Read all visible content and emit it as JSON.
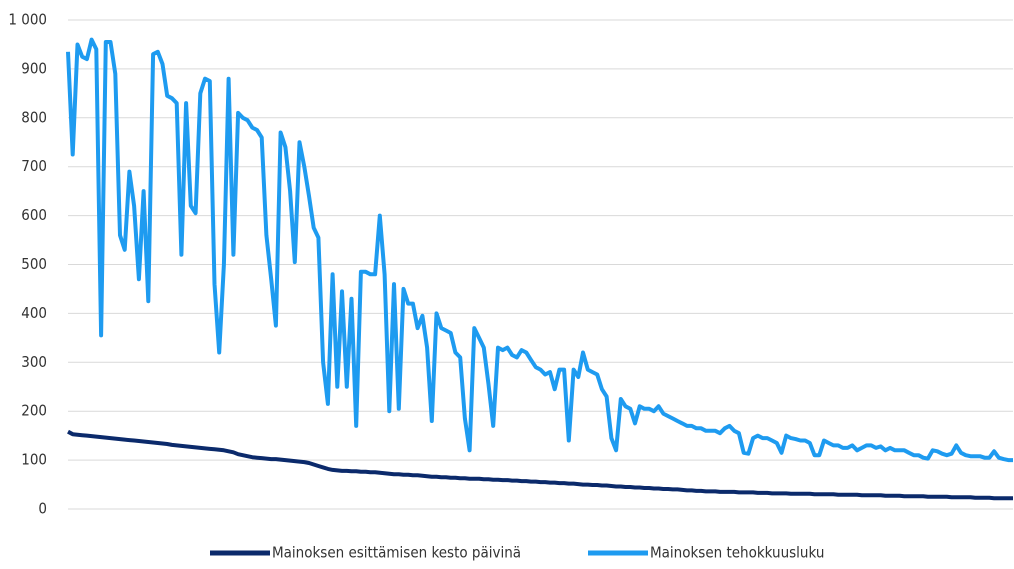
{
  "chart_data": {
    "type": "line",
    "ylim": [
      0,
      1000
    ],
    "yticks": [
      0,
      100,
      200,
      300,
      400,
      500,
      600,
      700,
      800,
      900,
      {
        "value": 1000,
        "label": "1 000"
      }
    ],
    "grid": true,
    "legend": "bottom",
    "series": [
      {
        "name": "Mainoksen esittämisen kesto päivinä",
        "color": "#0b2a6b",
        "values": [
          158,
          153,
          152,
          151,
          150,
          149,
          148,
          147,
          146,
          145,
          144,
          143,
          142,
          141,
          140,
          139,
          138,
          137,
          136,
          135,
          134,
          133,
          131,
          130,
          129,
          128,
          127,
          126,
          125,
          124,
          123,
          122,
          121,
          120,
          118,
          116,
          112,
          110,
          108,
          106,
          105,
          104,
          103,
          102,
          102,
          101,
          100,
          99,
          98,
          97,
          96,
          94,
          91,
          88,
          85,
          82,
          80,
          79,
          78,
          78,
          77,
          77,
          76,
          76,
          75,
          75,
          74,
          73,
          72,
          71,
          71,
          70,
          70,
          69,
          69,
          68,
          67,
          66,
          66,
          65,
          65,
          64,
          64,
          63,
          63,
          62,
          62,
          62,
          61,
          61,
          60,
          60,
          59,
          59,
          58,
          58,
          57,
          57,
          56,
          56,
          55,
          55,
          54,
          54,
          53,
          53,
          52,
          52,
          51,
          50,
          50,
          49,
          49,
          48,
          48,
          47,
          46,
          46,
          45,
          45,
          44,
          44,
          43,
          43,
          42,
          42,
          41,
          41,
          40,
          40,
          39,
          38,
          38,
          37,
          37,
          36,
          36,
          36,
          35,
          35,
          35,
          35,
          34,
          34,
          34,
          34,
          33,
          33,
          33,
          32,
          32,
          32,
          32,
          31,
          31,
          31,
          31,
          31,
          30,
          30,
          30,
          30,
          30,
          29,
          29,
          29,
          29,
          29,
          28,
          28,
          28,
          28,
          28,
          27,
          27,
          27,
          27,
          26,
          26,
          26,
          26,
          26,
          25,
          25,
          25,
          25,
          25,
          24,
          24,
          24,
          24,
          24,
          23,
          23,
          23,
          23,
          22,
          22,
          22,
          22,
          22
        ]
      },
      {
        "name": "Mainoksen tehokkuusluku",
        "color": "#1e9bf0",
        "values": [
          935,
          725,
          950,
          925,
          920,
          960,
          940,
          355,
          955,
          955,
          890,
          560,
          530,
          690,
          620,
          470,
          650,
          425,
          930,
          935,
          910,
          845,
          840,
          830,
          520,
          830,
          620,
          605,
          850,
          880,
          875,
          460,
          320,
          500,
          880,
          520,
          810,
          800,
          795,
          780,
          775,
          760,
          560,
          470,
          375,
          770,
          740,
          650,
          505,
          750,
          700,
          640,
          575,
          555,
          300,
          215,
          480,
          250,
          445,
          250,
          430,
          170,
          485,
          485,
          480,
          480,
          600,
          480,
          200,
          460,
          205,
          450,
          420,
          420,
          370,
          395,
          330,
          180,
          400,
          370,
          365,
          360,
          320,
          310,
          185,
          120,
          370,
          350,
          330,
          255,
          170,
          330,
          325,
          330,
          315,
          310,
          325,
          320,
          305,
          290,
          285,
          275,
          280,
          245,
          285,
          285,
          140,
          285,
          270,
          320,
          285,
          280,
          275,
          245,
          230,
          145,
          120,
          225,
          210,
          205,
          175,
          210,
          205,
          205,
          200,
          210,
          195,
          190,
          185,
          180,
          175,
          170,
          170,
          165,
          165,
          160,
          160,
          160,
          155,
          165,
          170,
          160,
          155,
          115,
          113,
          145,
          150,
          145,
          145,
          140,
          135,
          115,
          150,
          145,
          143,
          140,
          140,
          135,
          110,
          110,
          140,
          135,
          130,
          130,
          125,
          125,
          130,
          120,
          125,
          130,
          130,
          125,
          128,
          120,
          125,
          120,
          120,
          120,
          115,
          110,
          110,
          105,
          103,
          120,
          118,
          113,
          110,
          113,
          130,
          115,
          110,
          108,
          108,
          108,
          105,
          105,
          118,
          105,
          102,
          100,
          100
        ]
      }
    ]
  }
}
